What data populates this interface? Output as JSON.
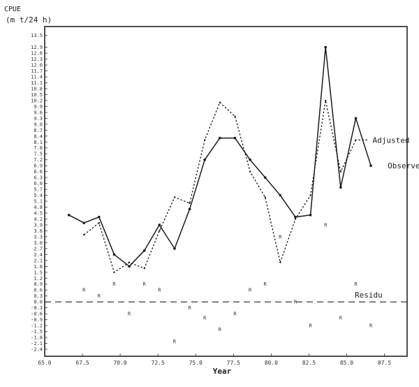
{
  "chart_data": {
    "type": "line",
    "y_title_line1": "CPUE",
    "y_title_line2": "(m t/24 h)",
    "xlabel": "Year",
    "x_ticks": [
      "65.0",
      "67.5",
      "70.0",
      "72.5",
      "75.0",
      "77.5",
      "80.0",
      "82.5",
      "85.0",
      "87.5"
    ],
    "x_tick_values": [
      65.0,
      67.5,
      70.0,
      72.5,
      75.0,
      77.5,
      80.0,
      82.5,
      85.0,
      87.5
    ],
    "xlim": [
      65.0,
      89.0
    ],
    "y_ticks": [
      "13.5",
      "12.9",
      "12.6",
      "12.3",
      "12.0",
      "11.7",
      "11.4",
      "11.1",
      "10.8",
      "10.5",
      "10.2",
      "9.9",
      "9.6",
      "9.3",
      "9.0",
      "8.7",
      "8.4",
      "8.1",
      "7.8",
      "7.5",
      "7.2",
      "6.9",
      "6.6",
      "6.3",
      "6.0",
      "5.7",
      "5.4",
      "5.1",
      "4.8",
      "4.5",
      "4.2",
      "3.9",
      "3.6",
      "3.3",
      "3.0",
      "2.7",
      "2.4",
      "2.1",
      "1.8",
      "1.5",
      "1.2",
      "0.9",
      "0.6",
      "0.3",
      "0.0",
      "-0.3",
      "-0.6",
      "-0.9",
      "-1.2",
      "-1.5",
      "-1.8",
      "-2.1",
      "-2.4"
    ],
    "y_tick_values": [
      13.5,
      12.9,
      12.6,
      12.3,
      12.0,
      11.7,
      11.4,
      11.1,
      10.8,
      10.5,
      10.2,
      9.9,
      9.6,
      9.3,
      9.0,
      8.7,
      8.4,
      8.1,
      7.8,
      7.5,
      7.2,
      6.9,
      6.6,
      6.3,
      6.0,
      5.7,
      5.4,
      5.1,
      4.8,
      4.5,
      4.2,
      3.9,
      3.6,
      3.3,
      3.0,
      2.7,
      2.4,
      2.1,
      1.8,
      1.5,
      1.2,
      0.9,
      0.6,
      0.3,
      0.0,
      -0.3,
      -0.6,
      -0.9,
      -1.2,
      -1.5,
      -1.8,
      -2.1,
      -2.4
    ],
    "ylim": [
      -2.4,
      13.7
    ],
    "series": [
      {
        "name": "Observed",
        "style": "solid",
        "x": [
          66.6,
          67.6,
          68.6,
          69.6,
          70.6,
          71.6,
          72.6,
          73.6,
          74.6,
          75.6,
          76.6,
          77.6,
          78.6,
          79.6,
          80.6,
          81.6,
          82.6,
          83.6,
          84.6,
          85.6,
          86.6
        ],
        "y": [
          4.4,
          4.0,
          4.3,
          2.4,
          1.8,
          2.6,
          3.9,
          2.7,
          4.7,
          7.2,
          8.3,
          8.3,
          7.2,
          6.3,
          5.4,
          4.3,
          4.4,
          12.9,
          5.8,
          9.3,
          6.9
        ]
      },
      {
        "name": "Adjusted",
        "style": "dashed",
        "x": [
          67.6,
          68.6,
          69.6,
          70.6,
          71.6,
          72.6,
          73.6,
          74.6,
          75.6,
          76.6,
          77.6,
          78.6,
          79.6,
          80.6,
          81.6,
          82.6,
          83.6,
          84.6,
          85.6
        ],
        "y": [
          3.4,
          4.0,
          1.5,
          2.0,
          1.7,
          3.6,
          5.3,
          5.0,
          8.2,
          10.1,
          9.4,
          6.6,
          5.3,
          2.0,
          4.2,
          5.4,
          10.2,
          6.6,
          8.2
        ]
      }
    ],
    "residuals": {
      "name": "Residu",
      "marker": "R",
      "x": [
        67.6,
        68.6,
        69.6,
        70.6,
        71.6,
        72.6,
        73.6,
        74.6,
        75.6,
        76.6,
        77.6,
        78.6,
        79.6,
        80.6,
        81.6,
        82.6,
        83.6,
        84.6,
        85.6,
        86.6
      ],
      "y": [
        0.6,
        0.3,
        0.9,
        -0.6,
        0.9,
        0.6,
        -2.0,
        -0.3,
        -0.8,
        -1.4,
        -0.6,
        0.6,
        0.9,
        3.3,
        0.0,
        -1.2,
        3.9,
        -0.8,
        0.9,
        -1.2
      ]
    },
    "legend": {
      "position": "right",
      "entries": [
        "Adjusted",
        "Observed",
        "Residu"
      ]
    },
    "grid": false
  }
}
